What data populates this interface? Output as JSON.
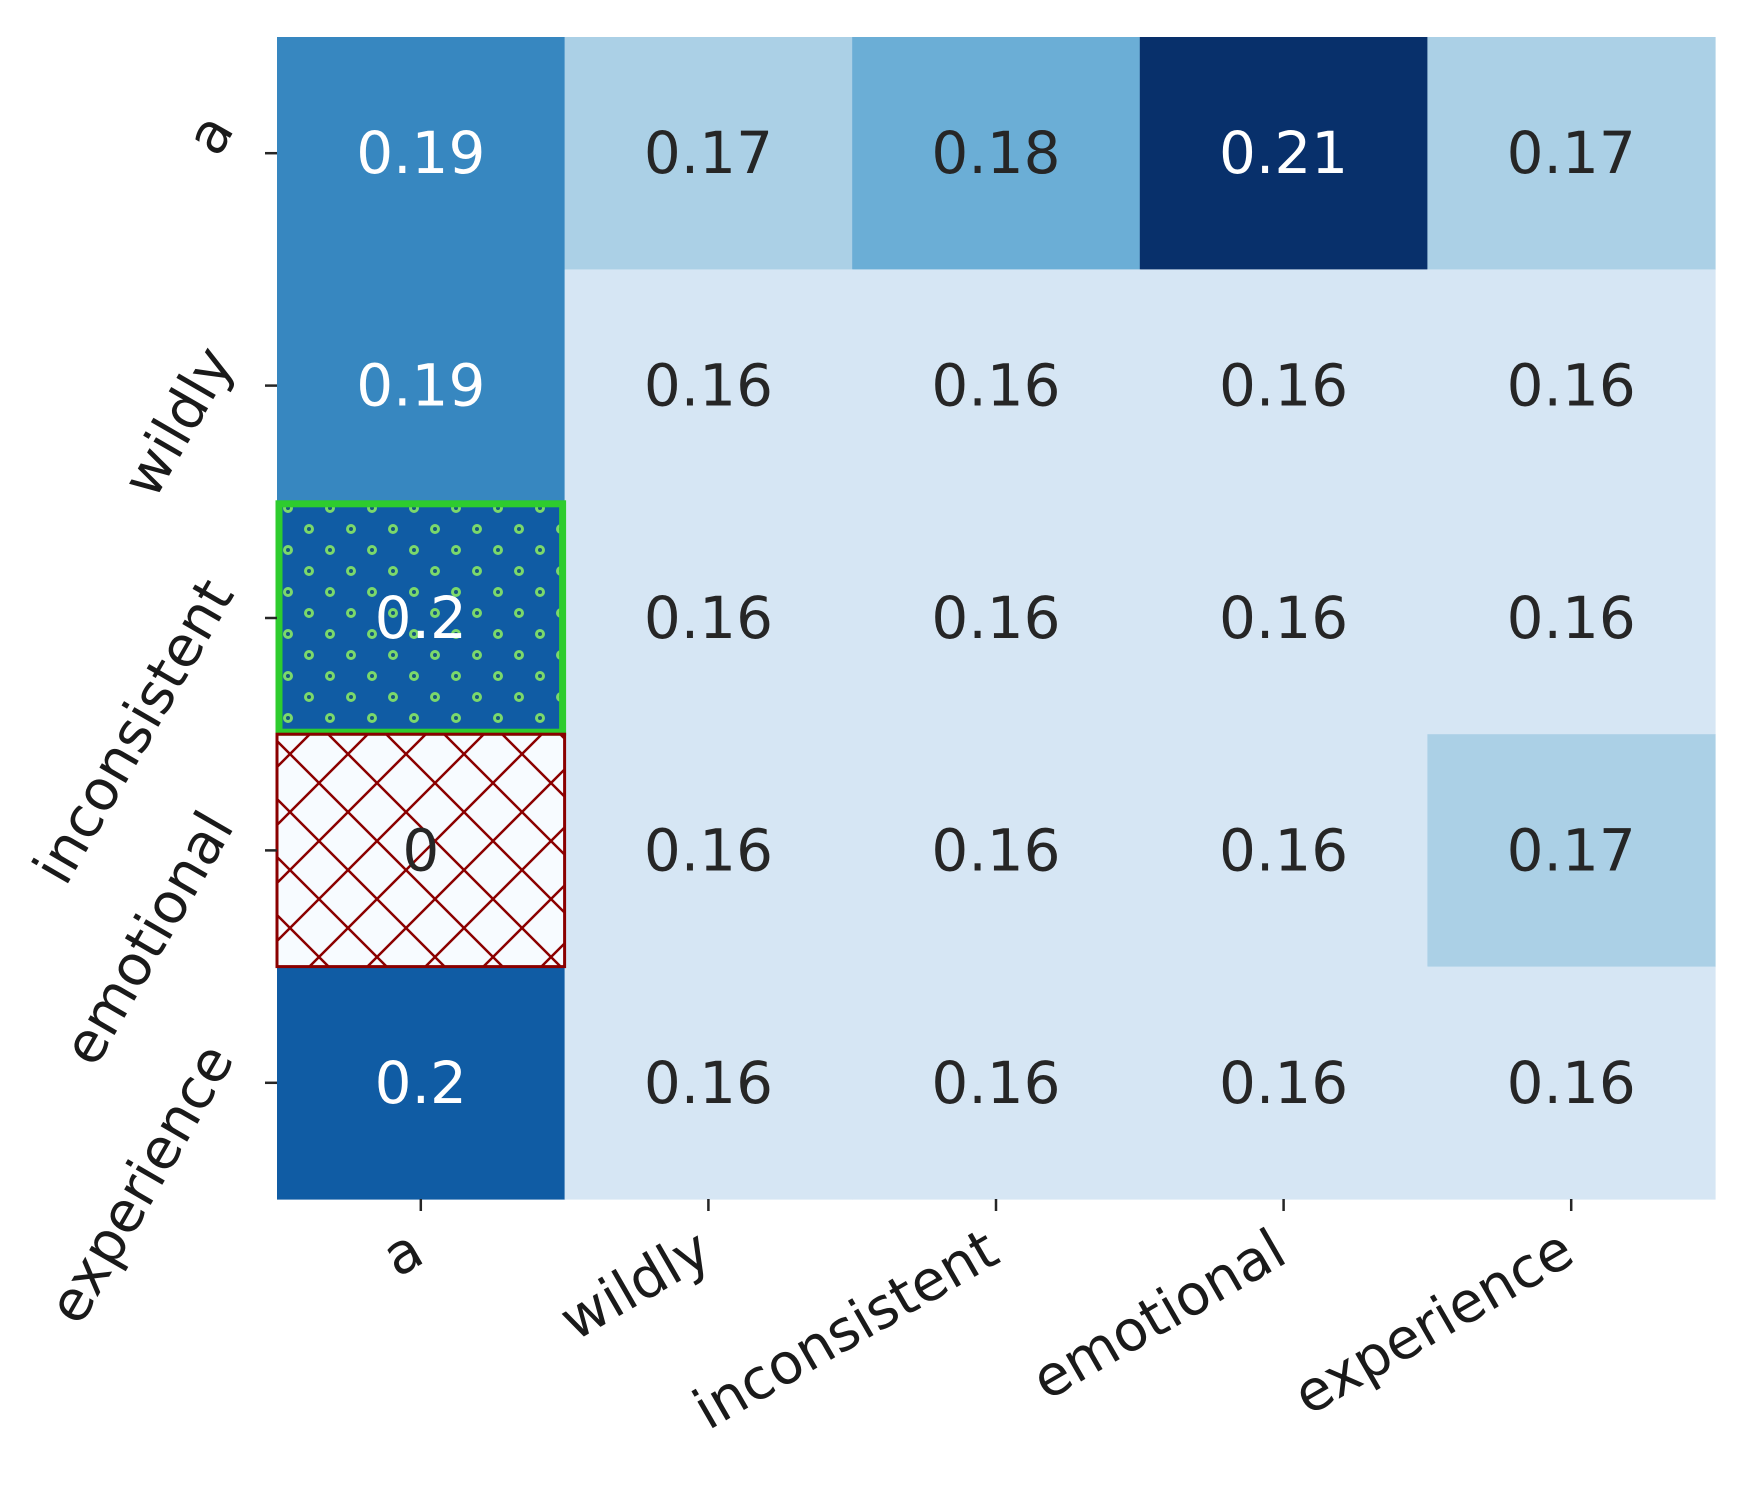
{
  "chart_data": {
    "type": "heatmap",
    "title": "",
    "xlabel": "",
    "ylabel": "",
    "x_labels": [
      "a",
      "wildly",
      "inconsistent",
      "emotional",
      "experience"
    ],
    "y_labels": [
      "a",
      "wildly",
      "inconsistent",
      "emotional",
      "experience"
    ],
    "values": [
      [
        0.19,
        0.17,
        0.18,
        0.21,
        0.17
      ],
      [
        0.19,
        0.16,
        0.16,
        0.16,
        0.16
      ],
      [
        0.2,
        0.16,
        0.16,
        0.16,
        0.16
      ],
      [
        0,
        0.16,
        0.16,
        0.16,
        0.17
      ],
      [
        0.2,
        0.16,
        0.16,
        0.16,
        0.16
      ]
    ],
    "cell_text": [
      [
        "0.19",
        "0.17",
        "0.18",
        "0.21",
        "0.17"
      ],
      [
        "0.19",
        "0.16",
        "0.16",
        "0.16",
        "0.16"
      ],
      [
        "0.2",
        "0.16",
        "0.16",
        "0.16",
        "0.16"
      ],
      [
        "0",
        "0.16",
        "0.16",
        "0.16",
        "0.17"
      ],
      [
        "0.2",
        "0.16",
        "0.16",
        "0.16",
        "0.16"
      ]
    ],
    "colormap": "Blues",
    "colorbar": false,
    "highlighted_cells": [
      {
        "row": 2,
        "col": 0,
        "style": "green-border-dotted",
        "color": "#2ecc2e"
      },
      {
        "row": 3,
        "col": 0,
        "style": "red-crosshatch-masked",
        "color": "#8b0000"
      }
    ]
  }
}
